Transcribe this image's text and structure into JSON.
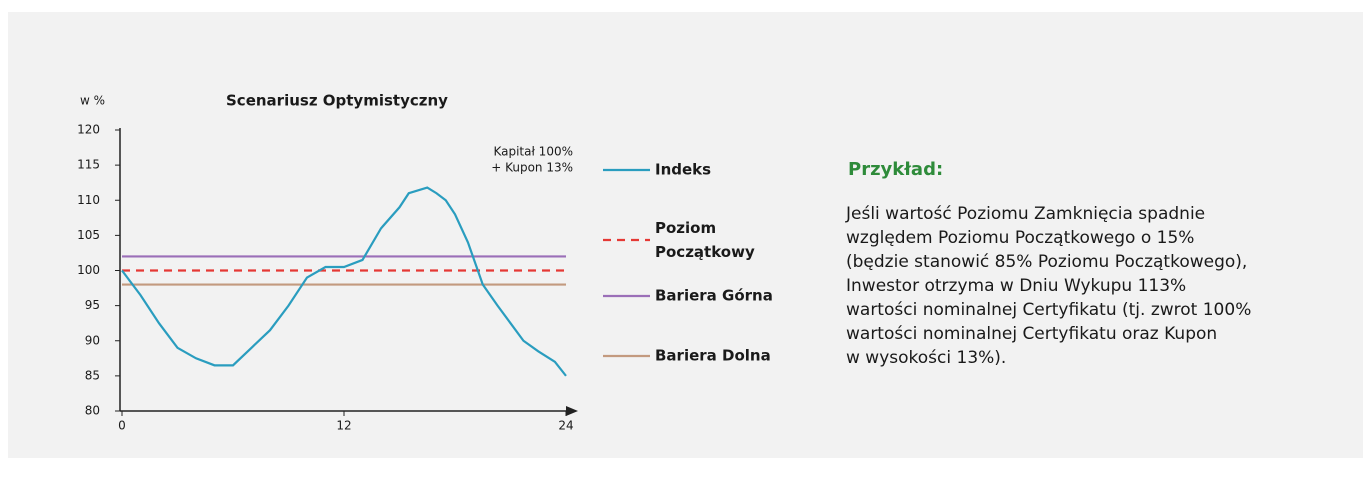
{
  "chart_data": {
    "type": "line",
    "title": "Scenariusz  Optymistyczny",
    "y_label": "w %",
    "annotation": [
      "Kapitał 100%",
      "+ Kupon 13%"
    ],
    "xlim": [
      0,
      24
    ],
    "xticks": [
      0,
      12,
      24
    ],
    "ylim": [
      80,
      120
    ],
    "yticks": [
      80,
      85,
      90,
      95,
      100,
      105,
      110,
      115,
      120
    ],
    "series": [
      {
        "name": "Indeks",
        "color": "#2a9dbf",
        "x": [
          0,
          1,
          2,
          3,
          4,
          5,
          6,
          7,
          8,
          9,
          10,
          11,
          12,
          13,
          14,
          15,
          15.5,
          16.5,
          17,
          17.5,
          18,
          18.7,
          19.5,
          20.3,
          21,
          21.7,
          22.5,
          23.4,
          24
        ],
        "values": [
          100,
          96.5,
          92.5,
          89,
          87.5,
          86.5,
          86.5,
          89,
          91.5,
          95,
          99,
          100.5,
          100.5,
          101.5,
          106,
          109,
          111,
          111.8,
          111,
          110,
          108,
          104,
          98,
          95,
          92.5,
          90,
          88.5,
          87,
          85
        ]
      },
      {
        "name": "Poziom Początkowy",
        "color": "#e53935",
        "dashed": true,
        "x": [
          0,
          24
        ],
        "values": [
          100,
          100
        ]
      },
      {
        "name": "Bariera Górna",
        "color": "#9b6fb8",
        "x": [
          0,
          24
        ],
        "values": [
          102,
          102
        ]
      },
      {
        "name": "Bariera Dolna",
        "color": "#c39a7f",
        "x": [
          0,
          24
        ],
        "values": [
          98,
          98
        ]
      }
    ]
  },
  "example": {
    "heading": "Przykład:",
    "lines": [
      "Jeśli wartość Poziomu Zamknięcia spadnie",
      "względem Poziomu Początkowego o 15%",
      "(będzie stanowić 85% Poziomu Początkowego),",
      "Inwestor otrzyma w Dniu Wykupu 113%",
      "wartości nominalnej Certyfikatu (tj. zwrot 100%",
      "wartości nominalnej Certyfikatu oraz Kupon",
      "w wysokości 13%)."
    ]
  }
}
